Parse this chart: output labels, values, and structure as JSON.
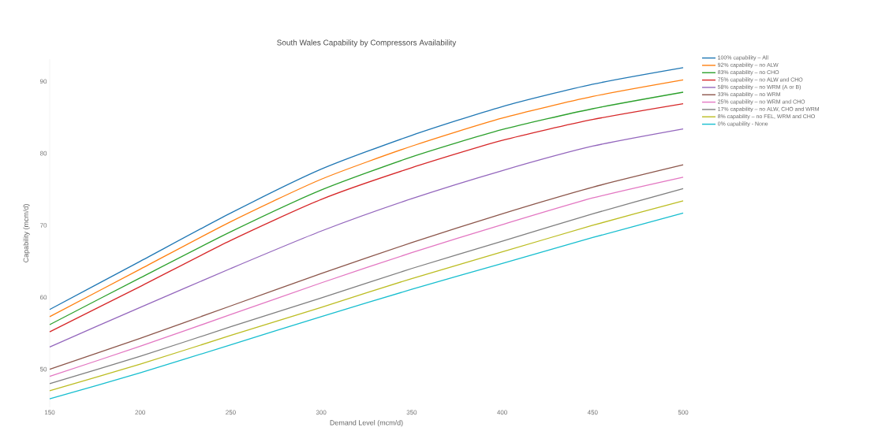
{
  "chart_data": {
    "type": "line",
    "title": "South Wales Capability by Compressors Availability",
    "xlabel": "Demand Level (mcm/d)",
    "ylabel": "Capability (mcm/d)",
    "x": [
      150,
      200,
      250,
      300,
      350,
      400,
      450,
      500
    ],
    "xlim": [
      150,
      500
    ],
    "ylim": [
      44.7,
      93.1
    ],
    "xticks": [
      150,
      200,
      250,
      300,
      350,
      400,
      450,
      500
    ],
    "yticks": [
      50,
      60,
      70,
      80,
      90
    ],
    "grid": false,
    "legend": "top right",
    "marker": "none",
    "line_style": "solid",
    "series": [
      {
        "name": "100% capability – All",
        "color": "#1f77b4",
        "values": [
          58.3,
          65.0,
          71.7,
          77.8,
          82.5,
          86.5,
          89.6,
          91.9
        ]
      },
      {
        "name": "92% capability – no ALW",
        "color": "#ff7f0e",
        "values": [
          57.3,
          63.9,
          70.5,
          76.4,
          81.0,
          84.9,
          87.9,
          90.2
        ]
      },
      {
        "name": "83% capability – no CHO",
        "color": "#2ca02c",
        "values": [
          56.2,
          62.7,
          69.1,
          74.9,
          79.5,
          83.3,
          86.2,
          88.5
        ]
      },
      {
        "name": "75% capability – no ALW and CHO",
        "color": "#d62728",
        "values": [
          55.2,
          61.5,
          67.9,
          73.6,
          78.0,
          81.8,
          84.7,
          86.9
        ]
      },
      {
        "name": "58% capability – no WRM (A or B)",
        "color": "#9467bd",
        "values": [
          53.1,
          58.6,
          64.0,
          69.2,
          73.7,
          77.6,
          81.0,
          83.4
        ]
      },
      {
        "name": "33% capability – no WRM",
        "color": "#8c564b",
        "values": [
          50.0,
          54.3,
          58.8,
          63.3,
          67.6,
          71.6,
          75.3,
          78.4
        ]
      },
      {
        "name": "25% capability – no WRM and CHO",
        "color": "#e377c2",
        "values": [
          49.0,
          53.2,
          57.6,
          62.0,
          66.2,
          70.1,
          73.8,
          76.7
        ]
      },
      {
        "name": "17% capability – no ALW, CHO and WRM",
        "color": "#7f7f7f",
        "values": [
          48.0,
          51.8,
          55.9,
          59.9,
          64.0,
          67.8,
          71.6,
          75.1
        ]
      },
      {
        "name": "8% capability – no FEL, WRM and CHO",
        "color": "#bcbd22",
        "values": [
          47.0,
          50.7,
          54.7,
          58.6,
          62.6,
          66.3,
          70.0,
          73.4
        ]
      },
      {
        "name": "0% capability - None",
        "color": "#17becf",
        "values": [
          45.9,
          49.5,
          53.4,
          57.3,
          61.1,
          64.7,
          68.3,
          71.7
        ]
      }
    ]
  }
}
